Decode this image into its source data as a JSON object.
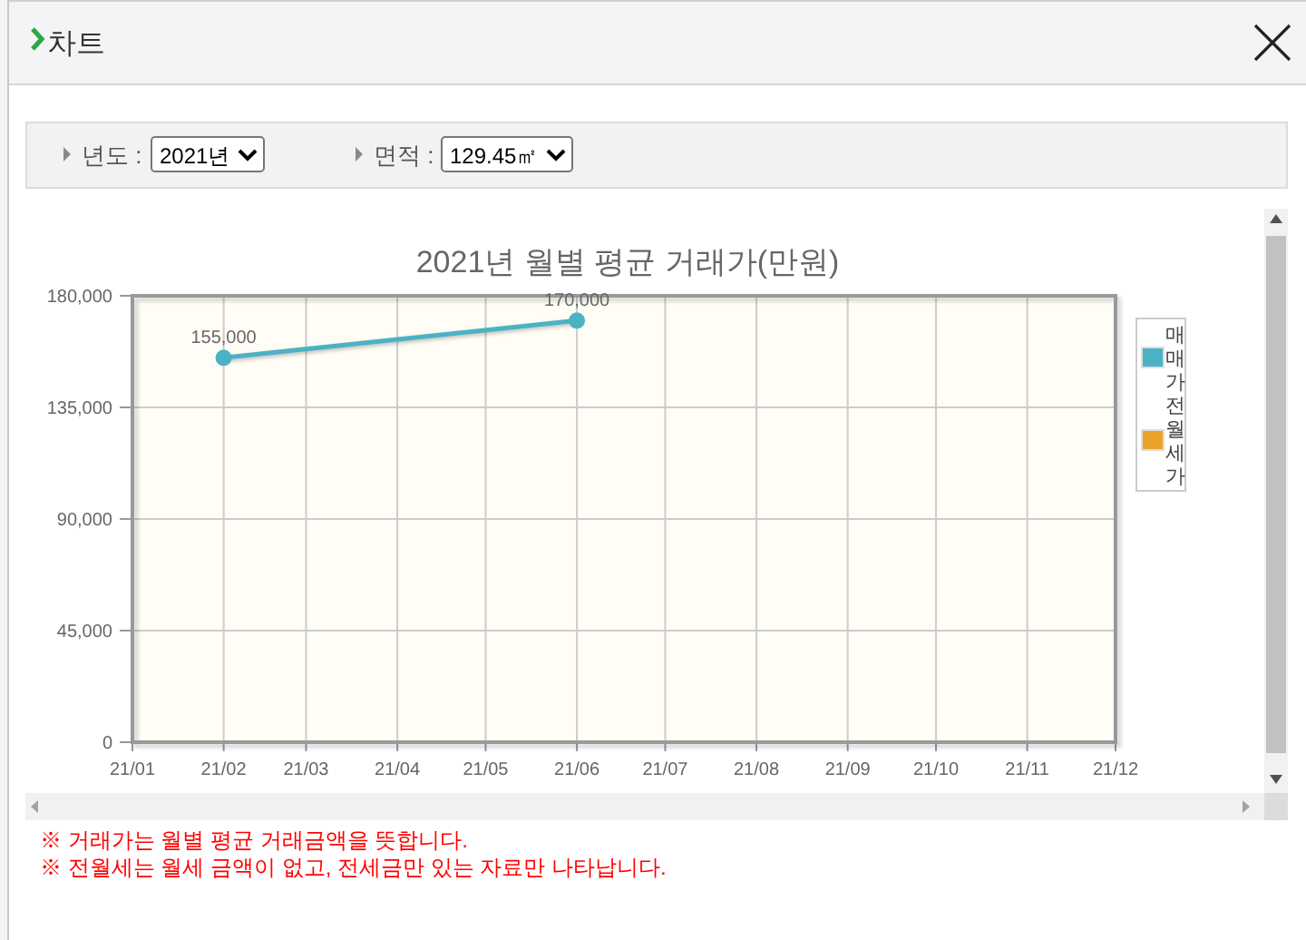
{
  "chart_data": {
    "type": "line",
    "title": "2021년 월별 평균 거래가(만원)",
    "series": [
      {
        "name": "매매가",
        "color": "#4bb2c5",
        "x": [
          "2021-02",
          "2021-06"
        ],
        "values": [
          155000,
          170000
        ],
        "value_labels": [
          "155,000",
          "170,000"
        ]
      },
      {
        "name": "전월세가",
        "color": "#eaa228"
      }
    ],
    "xlim": [
      "2021-01",
      "2021-12"
    ],
    "xticks": [
      {
        "value": "2021-01",
        "label": "21/01"
      },
      {
        "value": "2021-02",
        "label": "21/02"
      },
      {
        "value": "2021-03",
        "label": "21/03"
      },
      {
        "value": "2021-04",
        "label": "21/04"
      },
      {
        "value": "2021-05",
        "label": "21/05"
      },
      {
        "value": "2021-06",
        "label": "21/06"
      },
      {
        "value": "2021-07",
        "label": "21/07"
      },
      {
        "value": "2021-08",
        "label": "21/08"
      },
      {
        "value": "2021-09",
        "label": "21/09"
      },
      {
        "value": "2021-10",
        "label": "21/10"
      },
      {
        "value": "2021-11",
        "label": "21/11"
      },
      {
        "value": "2021-12",
        "label": "21/12"
      }
    ],
    "ylim": [
      0,
      180000
    ],
    "yticks": [
      0,
      {
        "value": 45000,
        "label": "45,000"
      },
      {
        "value": 90000,
        "label": "90,000"
      },
      {
        "value": 135000,
        "label": "135,000"
      },
      {
        "value": 180000,
        "label": "180,000"
      }
    ],
    "grid": true,
    "legend": "right",
    "marker": "circle",
    "annotations": [
      "차트",
      "년도 :",
      "2021년",
      "면적 :",
      "129.45㎡",
      "※ 거래가는 월별 평균 거래금액을 뜻합니다.",
      "※ 전월세는 월세 금액이 없고, 전세금만 있는 자료만 나타납니다."
    ]
  }
}
